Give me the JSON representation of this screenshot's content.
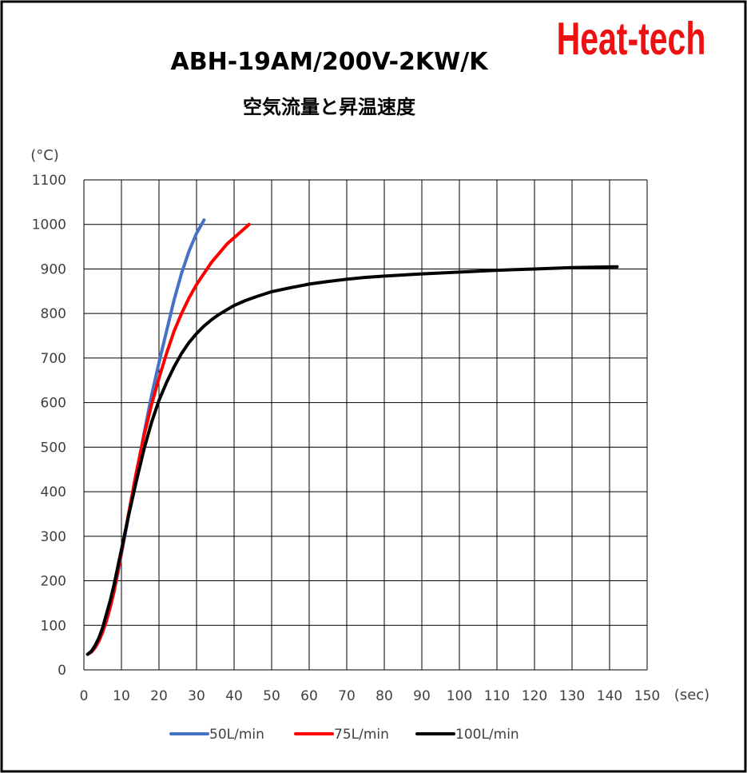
{
  "brand": "Heat-tech",
  "chart_data": {
    "type": "line",
    "title": "ABH-19AM/200V-2KW/K",
    "subtitle": "空気流量と昇温速度",
    "ylabel": "(°C)",
    "xlabel": "(sec)",
    "xlim": [
      0,
      150
    ],
    "ylim": [
      0,
      1100
    ],
    "xticks": [
      0,
      10,
      20,
      30,
      40,
      50,
      60,
      70,
      80,
      90,
      100,
      110,
      120,
      130,
      140,
      150
    ],
    "yticks": [
      0,
      100,
      200,
      300,
      400,
      500,
      600,
      700,
      800,
      900,
      1000,
      1100
    ],
    "grid": true,
    "legend_position": "bottom",
    "series": [
      {
        "name": "50L/min",
        "color": "#4472c4",
        "x": [
          1,
          2,
          3,
          4,
          5,
          6,
          7,
          8,
          9,
          10,
          12,
          14,
          16,
          18,
          20,
          22,
          24,
          26,
          28,
          30,
          32
        ],
        "y": [
          35,
          40,
          50,
          65,
          85,
          110,
          140,
          175,
          215,
          260,
          350,
          440,
          530,
          615,
          690,
          760,
          830,
          890,
          940,
          980,
          1010
        ]
      },
      {
        "name": "75L/min",
        "color": "#ff0000",
        "x": [
          1,
          2,
          3,
          4,
          5,
          6,
          7,
          8,
          9,
          10,
          12,
          14,
          16,
          18,
          20,
          22,
          24,
          26,
          28,
          30,
          32,
          34,
          36,
          38,
          40,
          42,
          44
        ],
        "y": [
          35,
          40,
          50,
          65,
          85,
          110,
          140,
          175,
          220,
          265,
          355,
          445,
          525,
          595,
          655,
          710,
          760,
          800,
          835,
          865,
          890,
          915,
          935,
          955,
          970,
          985,
          1000
        ]
      },
      {
        "name": "100L/min",
        "color": "#000000",
        "x": [
          1,
          2,
          3,
          4,
          5,
          6,
          7,
          8,
          9,
          10,
          12,
          14,
          16,
          18,
          20,
          22,
          24,
          26,
          28,
          30,
          32,
          34,
          36,
          38,
          40,
          43,
          46,
          50,
          55,
          60,
          65,
          70,
          75,
          80,
          90,
          100,
          110,
          120,
          130,
          142
        ],
        "y": [
          35,
          42,
          55,
          72,
          95,
          125,
          155,
          190,
          230,
          270,
          350,
          425,
          495,
          555,
          605,
          645,
          680,
          710,
          735,
          755,
          772,
          786,
          798,
          808,
          818,
          829,
          838,
          849,
          858,
          866,
          872,
          877,
          881,
          884,
          889,
          893,
          897,
          900,
          903,
          905
        ]
      }
    ]
  }
}
